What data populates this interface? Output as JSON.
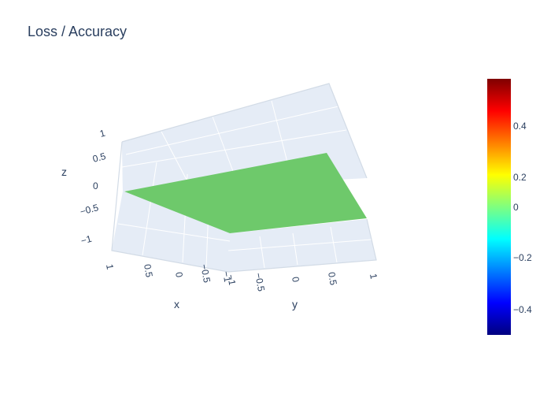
{
  "chart_data": {
    "type": "surface",
    "title": "Loss / Accuracy",
    "surface": {
      "x": [
        -1,
        1
      ],
      "y": [
        -1,
        1
      ],
      "z": [
        [
          0,
          0
        ],
        [
          0,
          0
        ]
      ],
      "colorscale": "Jet"
    },
    "axes": {
      "x": {
        "title": "x",
        "range": [
          -1,
          1
        ],
        "ticks": [
          "1",
          "0.5",
          "0",
          "−0.5",
          "−1"
        ]
      },
      "y": {
        "title": "y",
        "range": [
          -1,
          1
        ],
        "ticks": [
          "−1",
          "−0.5",
          "0",
          "0.5",
          "1"
        ]
      },
      "z": {
        "title": "z",
        "range": [
          -1,
          1
        ],
        "ticks": [
          "1",
          "0.5",
          "0",
          "−0.5",
          "−1"
        ]
      }
    },
    "colorbar": {
      "range": [
        -0.5,
        0.5
      ],
      "ticks": [
        "0.4",
        "0.2",
        "0",
        "−0.2",
        "−0.4"
      ],
      "colors": [
        "#7f0000",
        "#ff0000",
        "#ff7f00",
        "#ffff00",
        "#7fff7f",
        "#00ffff",
        "#007fff",
        "#0000ff",
        "#00007f"
      ]
    },
    "grid": true
  },
  "colors": {
    "surface": "#6ec96b",
    "pane": "#e5ecf6",
    "grid": "#ffffff",
    "text": "#2a3f5f"
  }
}
